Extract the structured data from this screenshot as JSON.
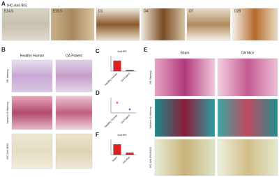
{
  "panel_a": {
    "label": "A",
    "title": "IHC-Anti IRS",
    "images": [
      "E14.5",
      "E16.5",
      "D1",
      "D4",
      "D7",
      "D28"
    ]
  },
  "panel_b": {
    "label": "B",
    "columns": [
      "Healthy Human",
      "OA Patient"
    ],
    "rows": [
      "HE Staining",
      "Safranin O Staining",
      "IHC Anti-iNOS"
    ]
  },
  "charts": [
    {
      "label": "C",
      "type": "bar",
      "title": "Anti-IRS",
      "categories": [
        "Healthy Human",
        "OA Patient"
      ],
      "values": [
        1.0,
        0.08
      ],
      "ylim": [
        0,
        1.5
      ],
      "color": "#e02020"
    },
    {
      "label": "D",
      "type": "dot",
      "categories": [
        "Healthy Human",
        "OA Patient"
      ],
      "values": [
        1.0,
        0.35
      ],
      "ylim": [
        0,
        1.5
      ],
      "color": "#5a6fd0"
    },
    {
      "label": "F",
      "type": "bar",
      "title": "Anti-IRS",
      "categories": [
        "Sham",
        "OA Mice"
      ],
      "values": [
        1.0,
        0.2
      ],
      "ylim": [
        0,
        1.5
      ],
      "color": "#e02020"
    }
  ],
  "panel_e": {
    "label": "E",
    "columns": [
      "Sham",
      "OA Mice"
    ],
    "rows": [
      "HE Staining",
      "Safranin O Staining",
      "IHC Anti-IRS/iNOS"
    ]
  }
}
